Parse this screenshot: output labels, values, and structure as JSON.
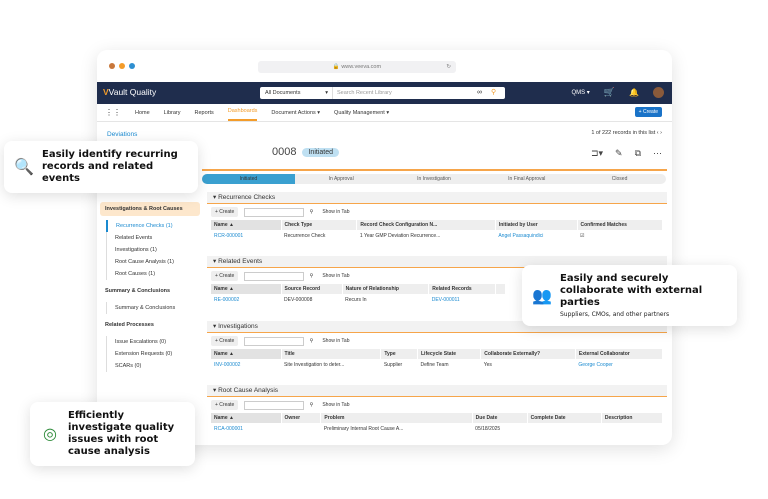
{
  "browser": {
    "url": "www.veeva.com",
    "dot_colors": [
      "#c8773a",
      "#f39c2a",
      "#2f8fd0"
    ]
  },
  "header": {
    "app": "Vault Quality",
    "search_scope": "All Documents",
    "search_placeholder": "Search Recent Library",
    "menu": "QMS"
  },
  "nav": {
    "items": [
      "Home",
      "Library",
      "Reports",
      "Dashboards",
      "Document Actions ▾",
      "Quality Management ▾"
    ],
    "active": "Dashboards",
    "create": "+ Create"
  },
  "record": {
    "breadcrumb": "Deviations",
    "pager": "1 of 222 records in this list",
    "title_suffix": "0008",
    "status": "Initiated"
  },
  "lifecycle": [
    "Initiated",
    "In Approval",
    "In Investigation",
    "In Final Approval",
    "Closed"
  ],
  "sidebar": [
    {
      "group": "Investigations & Root Causes",
      "items": [
        "Recurrence Checks (1)",
        "Related Events",
        "Investigations (1)",
        "Root Cause Analysis (1)",
        "Root Causes (1)"
      ]
    },
    {
      "group": "Summary & Conclusions",
      "items": [
        "Summary & Conclusions"
      ]
    },
    {
      "group": "Related Processes",
      "items": [
        "Issue Escalations (0)",
        "Extension Requests (0)",
        "SCARs (0)"
      ]
    }
  ],
  "common": {
    "create": "+ Create",
    "show_in_tab": "Show in Tab"
  },
  "sections": [
    {
      "title": "Recurrence Checks",
      "columns": [
        "Name ▲",
        "Check Type",
        "Record Check Configuration N...",
        "Initiated by User",
        "Confirmed Matches"
      ],
      "rows": [
        [
          "RCR-000001",
          "Recurrence Check",
          "1 Year GMP Deviation Recurrence...",
          "Angel Passaquindici",
          "☑"
        ]
      ]
    },
    {
      "title": "Related Events",
      "columns": [
        "Name ▲",
        "Source Record",
        "Nature of Relationship",
        "Related Records",
        ""
      ],
      "rows": [
        [
          "RE-000002",
          "DEV-000008",
          "Recurs In",
          "DEV-000011",
          ""
        ]
      ]
    },
    {
      "title": "Investigations",
      "columns": [
        "Name ▲",
        "Title",
        "Type",
        "Lifecycle State",
        "Collaborate Externally?",
        "External Collaborator"
      ],
      "rows": [
        [
          "INV-000002",
          "Site Investigation to deter...",
          "Supplier",
          "Define Team",
          "Yes",
          "George Cooper"
        ]
      ]
    },
    {
      "title": "Root Cause Analysis",
      "columns": [
        "Name ▲",
        "Owner",
        "Problem",
        "Due Date",
        "Complete Date",
        "Description"
      ],
      "rows": [
        [
          "RCA-000001",
          "",
          "Preliminary Internal Root Cause A...",
          "05/18/2025",
          "",
          ""
        ]
      ]
    }
  ],
  "callouts": [
    {
      "title": "Easily identify recurring records and related events",
      "subtitle": "",
      "icon": "search-check-icon"
    },
    {
      "title": "Easily and securely collaborate with external parties",
      "subtitle": "Suppliers, CMOs, and other partners",
      "icon": "users-icon"
    },
    {
      "title": "Efficiently investigate quality issues with root cause analysis",
      "subtitle": "",
      "icon": "target-icon"
    }
  ],
  "colors": {
    "navy": "#1f2d4d",
    "accent": "#f39c2a",
    "link": "#1a8ad0"
  }
}
